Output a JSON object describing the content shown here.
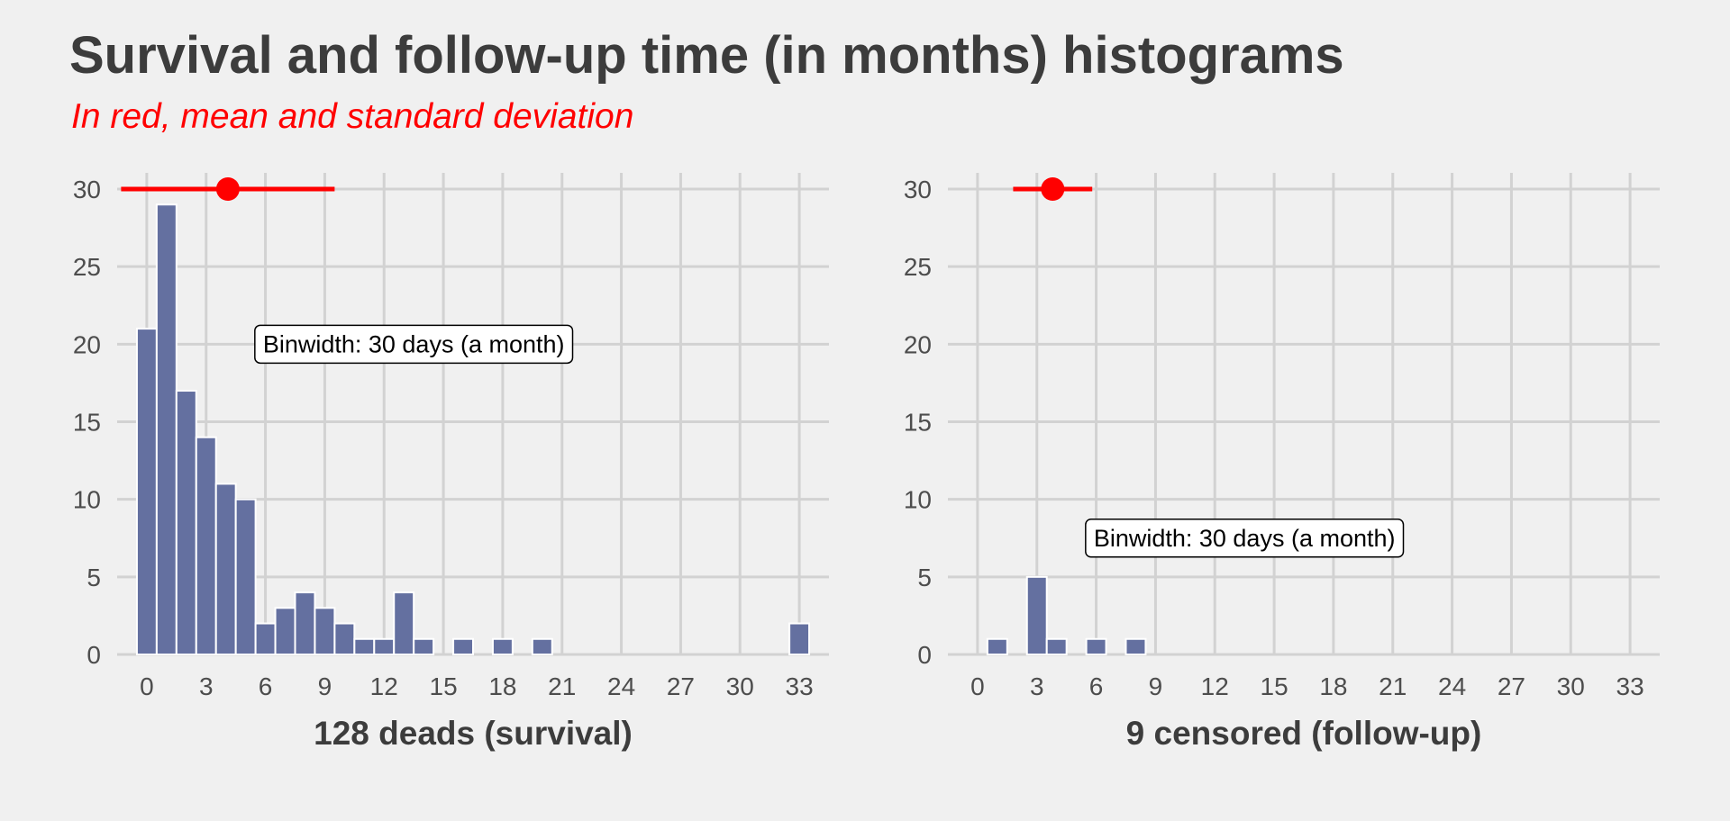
{
  "title": "Survival and follow-up time (in months) histograms",
  "subtitle": "In red, mean and standard deviation",
  "colors": {
    "background": "#f0f0f0",
    "bar": "#6470a0",
    "bar_outline": "#ffffff",
    "grid": "#d2d2d2",
    "mean_sd": "#ff0000",
    "text": "#3c3c3c"
  },
  "chart_data": [
    {
      "type": "bar",
      "xlabel": "128 deads (survival)",
      "ylabel": "",
      "xlim": [
        -1.5,
        34.5
      ],
      "ylim": [
        0,
        30
      ],
      "xticks": [
        0,
        3,
        6,
        9,
        12,
        15,
        18,
        21,
        24,
        27,
        30,
        33
      ],
      "yticks": [
        0,
        5,
        10,
        15,
        20,
        25,
        30
      ],
      "grid": true,
      "bins": [
        {
          "x": 0,
          "count": 21
        },
        {
          "x": 1,
          "count": 29
        },
        {
          "x": 2,
          "count": 17
        },
        {
          "x": 3,
          "count": 14
        },
        {
          "x": 4,
          "count": 11
        },
        {
          "x": 5,
          "count": 10
        },
        {
          "x": 6,
          "count": 2
        },
        {
          "x": 7,
          "count": 3
        },
        {
          "x": 8,
          "count": 4
        },
        {
          "x": 9,
          "count": 3
        },
        {
          "x": 10,
          "count": 2
        },
        {
          "x": 11,
          "count": 1
        },
        {
          "x": 12,
          "count": 1
        },
        {
          "x": 13,
          "count": 4
        },
        {
          "x": 14,
          "count": 1
        },
        {
          "x": 15,
          "count": 0
        },
        {
          "x": 16,
          "count": 1
        },
        {
          "x": 17,
          "count": 0
        },
        {
          "x": 18,
          "count": 1
        },
        {
          "x": 19,
          "count": 0
        },
        {
          "x": 20,
          "count": 1
        },
        {
          "x": 21,
          "count": 0
        },
        {
          "x": 22,
          "count": 0
        },
        {
          "x": 23,
          "count": 0
        },
        {
          "x": 24,
          "count": 0
        },
        {
          "x": 25,
          "count": 0
        },
        {
          "x": 26,
          "count": 0
        },
        {
          "x": 27,
          "count": 0
        },
        {
          "x": 28,
          "count": 0
        },
        {
          "x": 29,
          "count": 0
        },
        {
          "x": 30,
          "count": 0
        },
        {
          "x": 31,
          "count": 0
        },
        {
          "x": 32,
          "count": 0
        },
        {
          "x": 33,
          "count": 2
        }
      ],
      "mean": 4.1,
      "sd_range": [
        -1.3,
        9.5
      ],
      "mean_y": 30,
      "annotation": {
        "text": "Binwidth: 30 days (a month)",
        "x": 13.5,
        "y": 20
      }
    },
    {
      "type": "bar",
      "xlabel": "9 censored (follow-up)",
      "ylabel": "",
      "xlim": [
        -1.5,
        34.5
      ],
      "ylim": [
        0,
        30
      ],
      "xticks": [
        0,
        3,
        6,
        9,
        12,
        15,
        18,
        21,
        24,
        27,
        30,
        33
      ],
      "yticks": [
        0,
        5,
        10,
        15,
        20,
        25,
        30
      ],
      "grid": true,
      "bins": [
        {
          "x": 0,
          "count": 0
        },
        {
          "x": 1,
          "count": 1
        },
        {
          "x": 2,
          "count": 0
        },
        {
          "x": 3,
          "count": 5
        },
        {
          "x": 4,
          "count": 1
        },
        {
          "x": 5,
          "count": 0
        },
        {
          "x": 6,
          "count": 1
        },
        {
          "x": 7,
          "count": 0
        },
        {
          "x": 8,
          "count": 1
        },
        {
          "x": 9,
          "count": 0
        },
        {
          "x": 10,
          "count": 0
        },
        {
          "x": 11,
          "count": 0
        },
        {
          "x": 12,
          "count": 0
        },
        {
          "x": 13,
          "count": 0
        },
        {
          "x": 14,
          "count": 0
        },
        {
          "x": 15,
          "count": 0
        },
        {
          "x": 16,
          "count": 0
        },
        {
          "x": 17,
          "count": 0
        },
        {
          "x": 18,
          "count": 0
        },
        {
          "x": 19,
          "count": 0
        },
        {
          "x": 20,
          "count": 0
        },
        {
          "x": 21,
          "count": 0
        },
        {
          "x": 22,
          "count": 0
        },
        {
          "x": 23,
          "count": 0
        },
        {
          "x": 24,
          "count": 0
        },
        {
          "x": 25,
          "count": 0
        },
        {
          "x": 26,
          "count": 0
        },
        {
          "x": 27,
          "count": 0
        },
        {
          "x": 28,
          "count": 0
        },
        {
          "x": 29,
          "count": 0
        },
        {
          "x": 30,
          "count": 0
        },
        {
          "x": 31,
          "count": 0
        },
        {
          "x": 32,
          "count": 0
        },
        {
          "x": 33,
          "count": 0
        }
      ],
      "mean": 3.8,
      "sd_range": [
        1.8,
        5.8
      ],
      "mean_y": 30,
      "annotation": {
        "text": "Binwidth: 30 days (a month)",
        "x": 13.5,
        "y": 7.5
      }
    }
  ]
}
